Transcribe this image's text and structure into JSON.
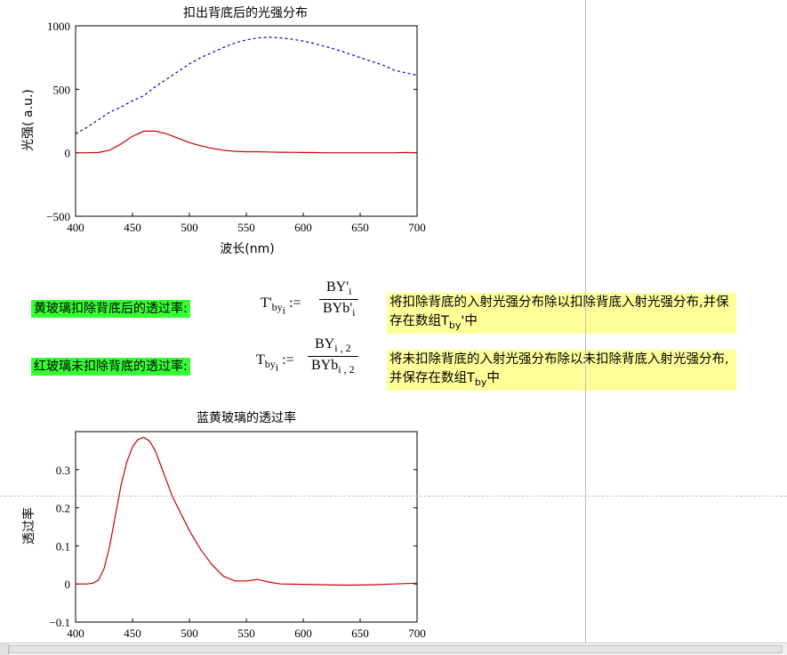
{
  "chart1": {
    "title": "扣出背底后的光强分布",
    "xlabel": "波长(nm)",
    "ylabel": "光强( a.u.)",
    "xticks": [
      "400",
      "450",
      "500",
      "550",
      "600",
      "650",
      "700"
    ],
    "yticks": [
      "1000",
      "500",
      "0",
      "−500"
    ]
  },
  "chart2": {
    "title": "蓝黄玻璃的透过率",
    "ylabel": "透过率",
    "xticks": [
      "400",
      "450",
      "500",
      "550",
      "600",
      "650",
      "700"
    ],
    "yticks": [
      "0.3",
      "0.2",
      "0.1",
      "0",
      "−0.1"
    ]
  },
  "rows": [
    {
      "label": "黄玻璃扣除背底后的透过率:",
      "lhs_main": "T'",
      "lhs_sub": "by",
      "lhs_subsub": "i",
      "assign": ":=",
      "num_main": "BY'",
      "num_sub": "i",
      "den_main": "BYb'",
      "den_sub": "i",
      "note_a": "将扣除背底的入射光强分布除以扣除背底入射光强分布,并保存在数组T",
      "note_sub": "by",
      "note_b": "'中"
    },
    {
      "label": "红玻璃未扣除背底的透过率:",
      "lhs_main": "T",
      "lhs_sub": "by",
      "lhs_subsub": "i",
      "assign": ":=",
      "num_main": "BY",
      "num_sub": "i , 2",
      "den_main": "BYb",
      "den_sub": "i , 2",
      "note_a": "将未扣除背底的入射光强分布除以未扣除背底入射光强分布,并保存在数组T",
      "note_sub": "by",
      "note_b": "中"
    }
  ],
  "chart_data": [
    {
      "type": "line",
      "title": "扣出背底后的光强分布",
      "xlabel": "波长(nm)",
      "ylabel": "光强( a.u.)",
      "xlim": [
        400,
        700
      ],
      "ylim": [
        -500,
        1000
      ],
      "grid": false,
      "x": [
        400,
        410,
        420,
        430,
        440,
        450,
        460,
        470,
        480,
        490,
        500,
        510,
        520,
        530,
        540,
        550,
        560,
        570,
        580,
        590,
        600,
        610,
        620,
        630,
        640,
        650,
        660,
        670,
        680,
        690,
        700
      ],
      "series": [
        {
          "style": "dashed",
          "color": "#0000cc",
          "values": [
            150,
            200,
            260,
            320,
            360,
            410,
            450,
            520,
            580,
            640,
            700,
            750,
            790,
            830,
            865,
            890,
            905,
            910,
            905,
            895,
            880,
            860,
            835,
            810,
            780,
            750,
            720,
            690,
            650,
            630,
            610
          ]
        },
        {
          "style": "solid",
          "color": "#cc0000",
          "values": [
            0,
            0,
            2,
            20,
            70,
            130,
            170,
            170,
            150,
            115,
            80,
            55,
            35,
            20,
            12,
            8,
            8,
            6,
            4,
            3,
            2,
            1,
            0,
            0,
            0,
            0,
            0,
            0,
            0,
            2,
            0
          ]
        }
      ]
    },
    {
      "type": "line",
      "title": "蓝黄玻璃的透过率",
      "ylabel": "透过率",
      "xlim": [
        400,
        700
      ],
      "ylim": [
        -0.1,
        0.4
      ],
      "grid": false,
      "x": [
        400,
        410,
        415,
        420,
        425,
        430,
        435,
        440,
        445,
        450,
        455,
        460,
        465,
        470,
        475,
        480,
        485,
        490,
        500,
        510,
        520,
        530,
        540,
        550,
        560,
        570,
        580,
        600,
        620,
        640,
        660,
        680,
        700
      ],
      "series": [
        {
          "style": "solid",
          "color": "#cc0000",
          "values": [
            0,
            0,
            0.002,
            0.01,
            0.04,
            0.1,
            0.18,
            0.26,
            0.32,
            0.36,
            0.38,
            0.385,
            0.375,
            0.35,
            0.31,
            0.27,
            0.23,
            0.2,
            0.14,
            0.09,
            0.05,
            0.02,
            0.008,
            0.008,
            0.012,
            0.005,
            0.0,
            -0.001,
            -0.002,
            -0.003,
            -0.002,
            0.0,
            0.002
          ]
        }
      ]
    }
  ]
}
